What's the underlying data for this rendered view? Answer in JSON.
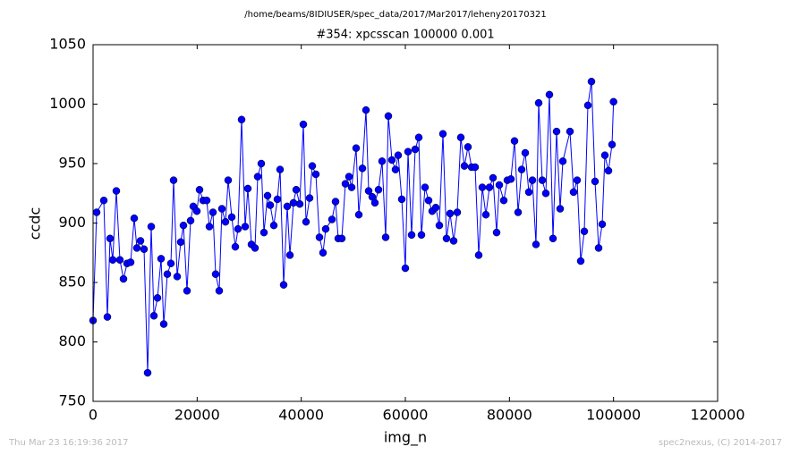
{
  "chart_data": {
    "type": "line",
    "suptitle": "/home/beams/8IDIUSER/spec_data/2017/Mar2017/leheny20170321",
    "title": "#354: xpcsscan 100000 0.001",
    "xlabel": "img_n",
    "ylabel": "ccdc",
    "footer_left": "Thu Mar 23 16:19:36 2017",
    "footer_right": "spec2nexus, (C) 2014-2017",
    "xlim": [
      0,
      120000
    ],
    "xticks": [
      0,
      20000,
      40000,
      60000,
      80000,
      100000,
      120000
    ],
    "ylim": [
      750,
      1050
    ],
    "yticks": [
      750,
      800,
      850,
      900,
      950,
      1000,
      1050
    ],
    "x": [
      0,
      688,
      2063,
      2751,
      3266,
      3782,
      4470,
      5158,
      5845,
      6533,
      7221,
      7908,
      8424,
      9112,
      9799,
      10487,
      11175,
      11691,
      12378,
      13066,
      13582,
      14269,
      14957,
      15473,
      16160,
      16848,
      17364,
      18052,
      18739,
      19255,
      19943,
      20458,
      21146,
      21834,
      22350,
      23037,
      23553,
      24241,
      24756,
      25444,
      25960,
      26648,
      27335,
      27851,
      28539,
      29226,
      29742,
      30430,
      31117,
      31633,
      32321,
      32837,
      33524,
      34040,
      34728,
      35416,
      35931,
      36619,
      37307,
      37822,
      38510,
      39026,
      39713,
      40401,
      40917,
      41605,
      42120,
      42808,
      43496,
      44183,
      44699,
      45903,
      46590,
      47106,
      47794,
      48481,
      49169,
      49685,
      50544,
      51060,
      51748,
      52436,
      52951,
      53639,
      54155,
      54843,
      55530,
      56218,
      56734,
      57421,
      58109,
      58625,
      59313,
      60000,
      60516,
      61204,
      61891,
      62579,
      63095,
      63782,
      64470,
      65158,
      65845,
      66533,
      67221,
      67908,
      68596,
      69284,
      69971,
      70659,
      71347,
      72034,
      72722,
      73410,
      74097,
      74785,
      75473,
      76160,
      76848,
      77536,
      78052,
      78911,
      79599,
      80287,
      80974,
      81662,
      82350,
      83037,
      83725,
      84413,
      85100,
      85616,
      86304,
      86991,
      87679,
      88367,
      89055,
      89742,
      90258,
      91633,
      92321,
      93008,
      93696,
      94384,
      95071,
      95759,
      96447,
      97134,
      97822,
      98338,
      99026,
      99713,
      100000
    ],
    "series": [
      {
        "name": "ccdc",
        "color": "#0000ff",
        "values": [
          818,
          909,
          919,
          821,
          887,
          869,
          927,
          869,
          853,
          866,
          867,
          904,
          879,
          885,
          878,
          774,
          897,
          822,
          837,
          870,
          815,
          857,
          866,
          936,
          855,
          884,
          898,
          843,
          902,
          914,
          910,
          928,
          919,
          919,
          897,
          909,
          857,
          843,
          912,
          901,
          936,
          905,
          880,
          895,
          987,
          897,
          929,
          882,
          879,
          939,
          950,
          892,
          923,
          915,
          898,
          920,
          945,
          848,
          914,
          873,
          917,
          928,
          916,
          983,
          901,
          921,
          948,
          941,
          888,
          875,
          895,
          903,
          918,
          887,
          887,
          933,
          939,
          930,
          963,
          907,
          946,
          995,
          927,
          922,
          917,
          928,
          952,
          888,
          990,
          953,
          945,
          957,
          920,
          862,
          960,
          890,
          962,
          972,
          890,
          930,
          919,
          910,
          913,
          898,
          975,
          887,
          908,
          885,
          909,
          972,
          948,
          964,
          947,
          947,
          873,
          930,
          907,
          930,
          938,
          892,
          932,
          919,
          936,
          937,
          969,
          909,
          945,
          959,
          926,
          936,
          882,
          1001,
          936,
          925,
          1008,
          887,
          977,
          912,
          952,
          977,
          926,
          936,
          868,
          893,
          999,
          1019,
          935,
          879,
          899,
          957,
          944,
          966,
          1002
        ]
      }
    ]
  }
}
